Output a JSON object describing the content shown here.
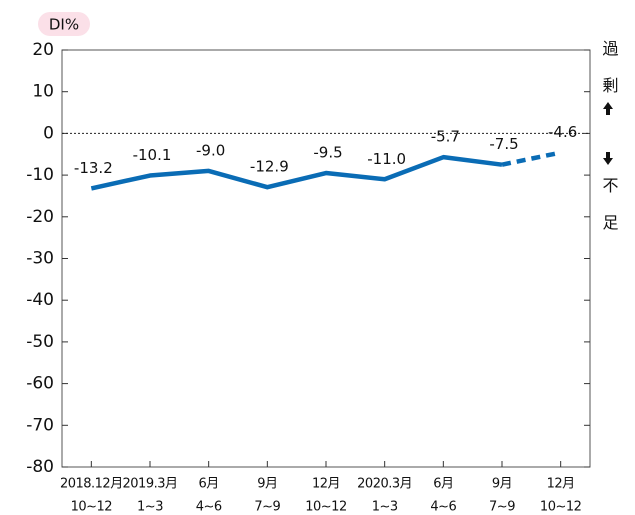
{
  "chart_data": {
    "type": "line",
    "unit_label": "DI%",
    "side_label_top": "過剰",
    "side_label_bottom": "不足",
    "categories": [
      [
        "2018.12月",
        "10~12"
      ],
      [
        "2019.3月",
        "1~3"
      ],
      [
        "6月",
        "4~6"
      ],
      [
        "9月",
        "7~9"
      ],
      [
        "12月",
        "10~12"
      ],
      [
        "2020.3月",
        "1~3"
      ],
      [
        "6月",
        "4~6"
      ],
      [
        "9月",
        "7~9"
      ],
      [
        "12月",
        "10~12"
      ]
    ],
    "series": [
      {
        "color": "#0a6cb5",
        "style": "solid",
        "values": [
          -13.2,
          -10.1,
          -9.0,
          -12.9,
          -9.5,
          -11.0,
          -5.7,
          -7.5,
          null
        ],
        "value_labels": [
          "-13.2",
          "-10.1",
          "-9.0",
          "-12.9",
          "-9.5",
          "-11.0",
          "-5.7",
          "-7.5",
          null
        ]
      },
      {
        "color": "#0a6cb5",
        "style": "dashed",
        "values": [
          null,
          null,
          null,
          null,
          null,
          null,
          null,
          -7.5,
          -4.6
        ],
        "value_labels": [
          null,
          null,
          null,
          null,
          null,
          null,
          null,
          null,
          "-4.6"
        ]
      }
    ],
    "ylim": [
      -80,
      20
    ],
    "yticks": [
      20,
      10,
      0,
      -10,
      -20,
      -30,
      -40,
      -50,
      -60,
      -70,
      -80
    ],
    "zero_line": "dotted"
  }
}
